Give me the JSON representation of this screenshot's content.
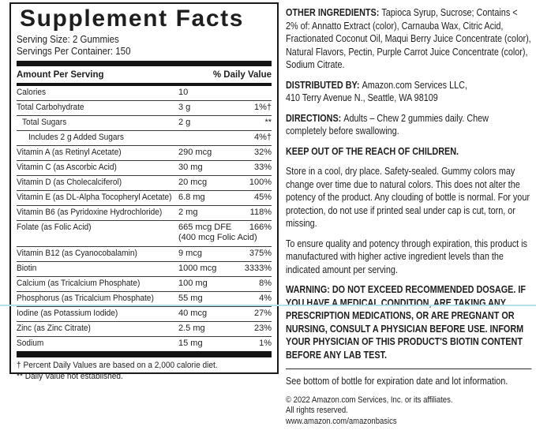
{
  "colors": {
    "text": "#1e1e1e",
    "bars": "#141414",
    "blue_guide_line": "#b2dfe9"
  },
  "panel": {
    "title": "Supplement Facts",
    "serving_size": "Serving Size: 2 Gummies",
    "servings_per_container": "Servings Per Container: 150",
    "header": {
      "amount": "Amount Per Serving",
      "daily_value": "% Daily Value"
    },
    "rows": [
      {
        "name": "Calories",
        "amount": "10",
        "dv": "",
        "indent": 0
      },
      {
        "name": "Total Carbohydrate",
        "amount": "3 g",
        "dv": "1%†",
        "indent": 0
      },
      {
        "name": "Total Sugars",
        "amount": "2 g",
        "dv": "**",
        "indent": 1
      },
      {
        "name": "Includes 2 g Added Sugars",
        "amount": "",
        "dv": "4%†",
        "indent": 2
      },
      {
        "name": "Vitamin A (as Retinyl Acetate)",
        "amount": "290 mcg",
        "dv": "32%",
        "indent": 0
      },
      {
        "name": "Vitamin C (as Ascorbic Acid)",
        "amount": "30 mg",
        "dv": "33%",
        "indent": 0
      },
      {
        "name": "Vitamin D (as Cholecalciferol)",
        "amount": "20 mcg",
        "dv": "100%",
        "indent": 0
      },
      {
        "name": "Vitamin E (as DL-Alpha Tocopheryl Acetate)",
        "amount": "6.8 mg",
        "dv": "45%",
        "indent": 0
      },
      {
        "name": "Vitamin B6 (as Pyridoxine Hydrochloride)",
        "amount": "2 mg",
        "dv": "118%",
        "indent": 0
      },
      {
        "name": "Folate (as Folic Acid)",
        "amount": "665 mcg DFE",
        "amount2": "(400 mcg Folic Acid)",
        "dv": "166%",
        "indent": 0
      },
      {
        "name": "Vitamin B12 (as Cyanocobalamin)",
        "amount": "9 mcg",
        "dv": "375%",
        "indent": 0
      },
      {
        "name": "Biotin",
        "amount": "1000 mcg",
        "dv": "3333%",
        "indent": 0
      },
      {
        "name": "Calcium (as Tricalcium Phosphate)",
        "amount": "100 mg",
        "dv": "8%",
        "indent": 0
      },
      {
        "name": "Phosphorus (as Tricalcium Phosphate)",
        "amount": "55 mg",
        "dv": "4%",
        "indent": 0
      },
      {
        "name": "Iodine (as Potassium Iodide)",
        "amount": "40 mcg",
        "dv": "27%",
        "indent": 0
      },
      {
        "name": "Zinc (as Zinc Citrate)",
        "amount": "2.5 mg",
        "dv": "23%",
        "indent": 0
      },
      {
        "name": "Sodium",
        "amount": "15 mg",
        "dv": "1%",
        "indent": 0
      }
    ],
    "footnotes": [
      "† Percent Daily Values are based on a 2,000 calorie diet.",
      "** Daily Value not established."
    ]
  },
  "info": {
    "sections": [
      {
        "name": "other-ingredients",
        "label": "OTHER INGREDIENTS:",
        "text": "Tapioca Syrup, Sucrose; Contains < 2% of: Annatto Extract (color), Carnauba Wax, Citric Acid, Fractionated Coconut Oil, Maqui Berry Juice Concentrate (color), Natural Flavors, Pectin, Purple Carrot Juice Concentrate (color), Sodium Citrate."
      },
      {
        "name": "distributed-by",
        "label": "DISTRIBUTED BY:",
        "text": "Amazon.com Services LLC,",
        "line2": "410 Terry Avenue N., Seattle, WA 98109"
      },
      {
        "name": "directions",
        "label": "DIRECTIONS:",
        "text": "Adults – Chew 2 gummies daily. Chew completely before swallowing."
      },
      {
        "name": "keep-out-warning",
        "text": "KEEP OUT OF THE REACH OF CHILDREN.",
        "bold": true
      },
      {
        "name": "storage-statement",
        "text": "Store in a cool, dry place. Safety-sealed. Gummy colors may change over time due to natural colors. This does not alter the potency of the product. Any clouding of bottle is normal. For your protection, do not use if printed seal under cap is cut, torn, or missing."
      },
      {
        "name": "quality-statement",
        "text": "To ensure quality and potency through expiration, this product is manufactured with higher active ingredient levels than the indicated amount per serving."
      },
      {
        "name": "dosage-warning",
        "text": "WARNING:  DO NOT EXCEED RECOMMENDED DOSAGE. IF YOU HAVE A MEDICAL CONDITION, ARE TAKING ANY PRESCRIPTION MEDICATIONS, OR ARE PREGNANT OR NURSING, CONSULT A PHYSICIAN BEFORE USE. INFORM YOUR PHYSICIAN OF THIS PRODUCT'S BIOTIN CONTENT BEFORE ANY LAB TEST.",
        "bold": true,
        "divider_after": true
      },
      {
        "name": "expiration-note",
        "text": "See bottom of bottle for expiration date and lot information."
      },
      {
        "name": "copyright-block",
        "small": true,
        "lines": [
          "© 2022 Amazon.com Services, Inc. or its affiliates.",
          "All rights reserved.",
          "www.amazon.com/amazonbasics"
        ]
      }
    ]
  }
}
